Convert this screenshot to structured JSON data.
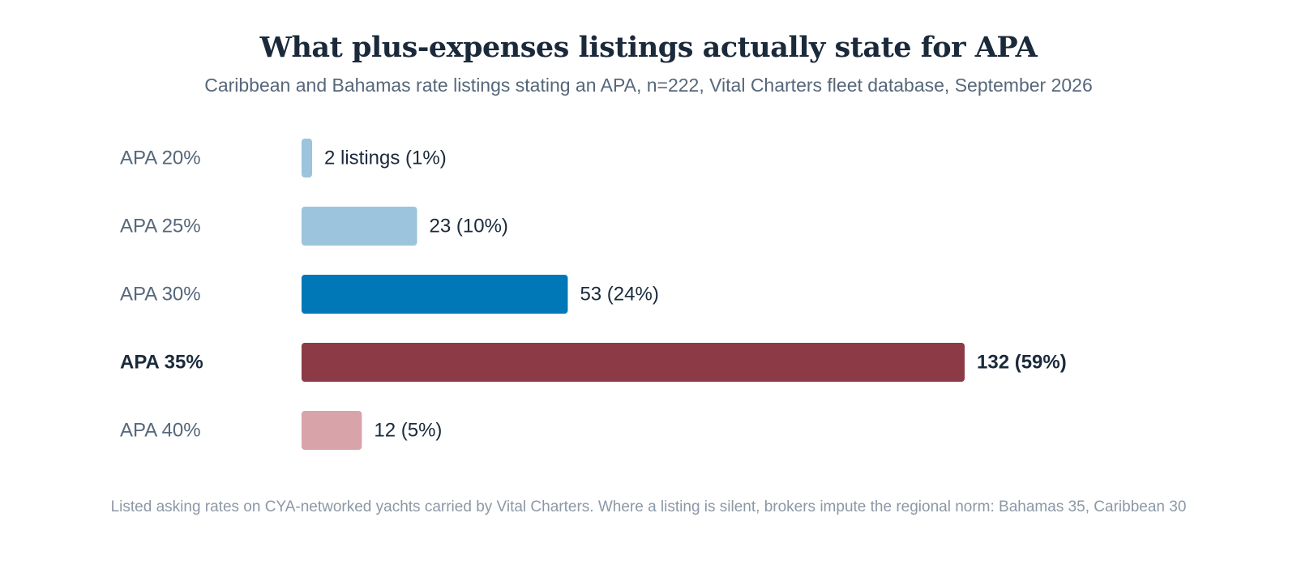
{
  "header": {
    "title": "What plus-expenses listings actually state for APA",
    "subtitle": "Caribbean and Bahamas rate listings stating an APA, n=222, Vital Charters fleet database, September 2026"
  },
  "footer": {
    "note": "Listed asking rates on CYA-networked yachts carried by Vital Charters. Where a listing is silent, brokers impute the regional norm: Bahamas 35, Caribbean 30"
  },
  "chart_data": {
    "type": "bar",
    "orientation": "horizontal",
    "title": "What plus-expenses listings actually state for APA",
    "subtitle": "Caribbean and Bahamas rate listings stating an APA, n=222, Vital Charters fleet database, September 2026",
    "categories": [
      "APA 20%",
      "APA 25%",
      "APA 30%",
      "APA 35%",
      "APA 40%"
    ],
    "values": [
      2,
      23,
      53,
      132,
      12
    ],
    "data_labels": [
      "2 listings (1%)",
      "23 (10%)",
      "53 (24%)",
      "132 (59%)",
      "12 (5%)"
    ],
    "colors": [
      "#9cc4dc",
      "#9cc4dc",
      "#0078b8",
      "#8c3a45",
      "#d8a3a9"
    ],
    "highlight": "APA 35%",
    "highlight_color": "#8c3a45",
    "label_color": "#56677a",
    "highlight_label_color": "#1b2a3b",
    "xlim": [
      0,
      132
    ],
    "grid": false,
    "legend": "none"
  }
}
